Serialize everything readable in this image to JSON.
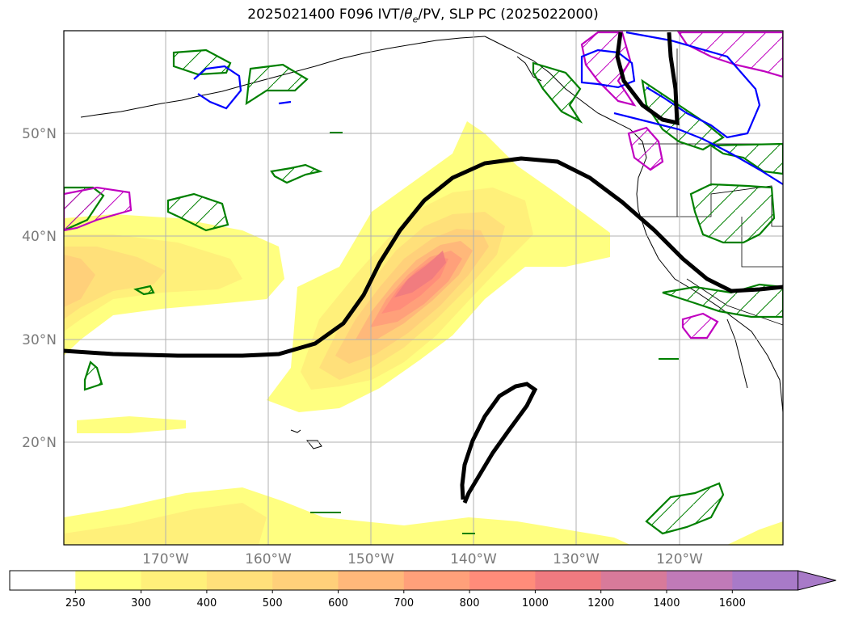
{
  "title_main": "2025021400 F096 IVT/",
  "title_theta": "θ",
  "title_sub": "e",
  "title_rest": "/PV, SLP PC (2025022000)",
  "map": {
    "lat_labels": [
      "50°N",
      "40°N",
      "30°N",
      "20°N"
    ],
    "lon_labels": [
      "170°W",
      "160°W",
      "150°W",
      "140°W",
      "130°W",
      "120°W"
    ]
  },
  "colorbar": {
    "levels": [
      "250",
      "300",
      "400",
      "500",
      "600",
      "700",
      "800",
      "1000",
      "1200",
      "1400",
      "1600"
    ],
    "colors": [
      "#ffffff",
      "#ffff80",
      "#fff07a",
      "#ffe07a",
      "#ffd07a",
      "#ffb87a",
      "#ffa07a",
      "#ff8c7a",
      "#f07a80",
      "#d87a9a",
      "#c07ab8",
      "#a87ac8"
    ],
    "extend": "max"
  },
  "legend_colors": {
    "pv_contour": "#008000",
    "theta_contour": "#c000c0",
    "blue_contour": "#0000ff",
    "slp_contour": "#000000"
  }
}
